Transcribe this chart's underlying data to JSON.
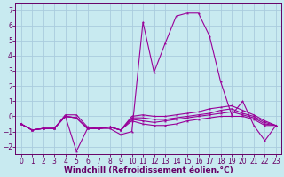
{
  "background_color": "#c8eaf0",
  "grid_color": "#aaccdd",
  "line_color": "#990099",
  "xlabel": "Windchill (Refroidissement éolien,°C)",
  "xlabel_fontsize": 6.5,
  "tick_fontsize": 5.5,
  "xlim": [
    -0.5,
    23.5
  ],
  "ylim": [
    -2.5,
    7.5
  ],
  "yticks": [
    -2,
    -1,
    0,
    1,
    2,
    3,
    4,
    5,
    6,
    7
  ],
  "xticks": [
    0,
    1,
    2,
    3,
    4,
    5,
    6,
    7,
    8,
    9,
    10,
    11,
    12,
    13,
    14,
    15,
    16,
    17,
    18,
    19,
    20,
    21,
    22,
    23
  ],
  "series": [
    [
      -0.5,
      -0.9,
      -0.8,
      -0.8,
      0.1,
      0.1,
      -0.7,
      -0.8,
      -0.8,
      -1.2,
      -1.0,
      6.2,
      2.9,
      4.8,
      6.6,
      6.8,
      6.8,
      5.3,
      2.3,
      0.1,
      1.0,
      -0.6,
      -1.6,
      -0.6
    ],
    [
      -0.5,
      -0.9,
      -0.8,
      -0.8,
      0.0,
      -2.3,
      -0.8,
      -0.8,
      -0.7,
      -0.9,
      -0.3,
      -0.5,
      -0.6,
      -0.6,
      -0.5,
      -0.3,
      -0.2,
      -0.1,
      0.0,
      0.0,
      0.0,
      -0.2,
      -0.6,
      -0.6
    ],
    [
      -0.5,
      -0.9,
      -0.8,
      -0.8,
      0.0,
      -0.1,
      -0.8,
      -0.8,
      -0.7,
      -0.9,
      -0.2,
      -0.3,
      -0.4,
      -0.3,
      -0.2,
      -0.1,
      0.0,
      0.1,
      0.2,
      0.3,
      0.1,
      -0.1,
      -0.5,
      -0.6
    ],
    [
      -0.5,
      -0.9,
      -0.8,
      -0.8,
      0.0,
      -0.1,
      -0.8,
      -0.8,
      -0.7,
      -0.9,
      -0.1,
      -0.1,
      -0.2,
      -0.2,
      -0.1,
      0.0,
      0.1,
      0.2,
      0.4,
      0.5,
      0.2,
      0.0,
      -0.4,
      -0.6
    ],
    [
      -0.5,
      -0.9,
      -0.8,
      -0.8,
      0.0,
      -0.1,
      -0.8,
      -0.8,
      -0.7,
      -0.9,
      0.0,
      0.1,
      0.0,
      0.0,
      0.1,
      0.2,
      0.3,
      0.5,
      0.6,
      0.7,
      0.4,
      0.1,
      -0.3,
      -0.6
    ]
  ]
}
